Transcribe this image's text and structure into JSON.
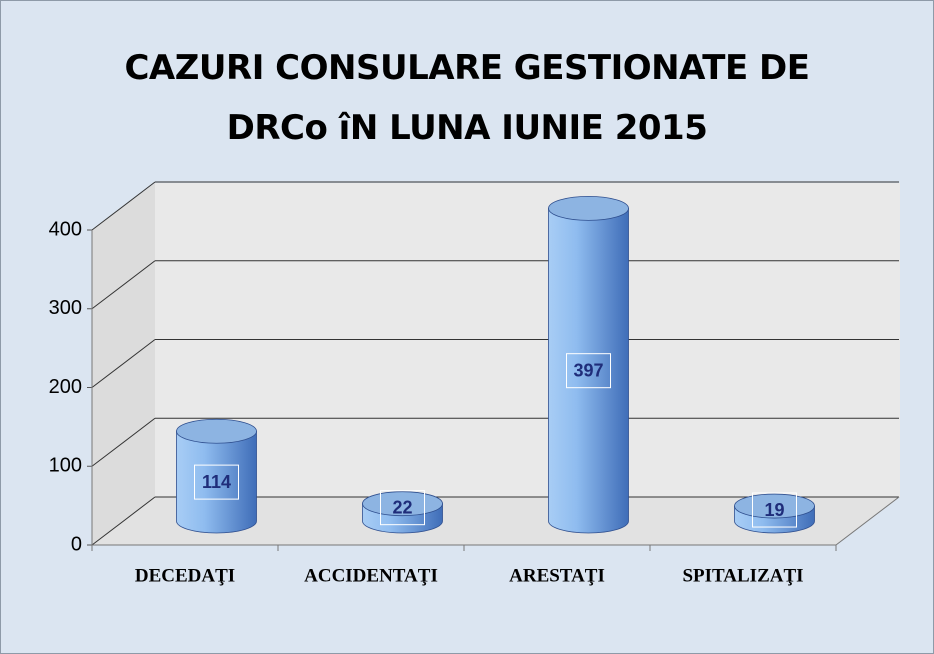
{
  "chart_data": {
    "type": "bar",
    "title": "CAZURI CONSULARE GESTIONATE DE DRCo îN LUNA IUNIE 2015",
    "categories": [
      "DECEDAŢI",
      "ACCIDENTAŢI",
      "ARESTAŢI",
      "SPITALIZAŢI"
    ],
    "values": [
      114,
      22,
      397,
      19
    ],
    "color": "#8db4e2",
    "ylim": [
      0,
      400
    ],
    "yticks": [
      0,
      100,
      200,
      300,
      400
    ],
    "grid": true
  }
}
